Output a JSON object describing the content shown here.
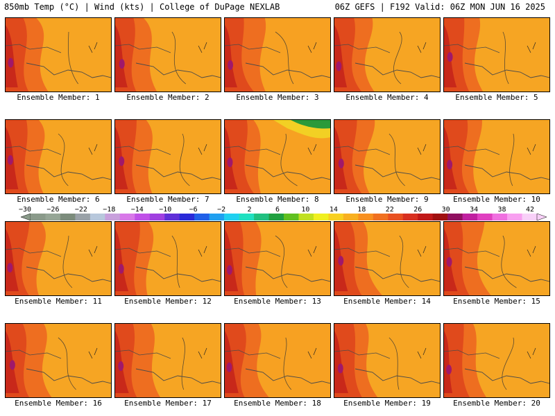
{
  "header": {
    "left": "850mb Temp (°C) | Wind (kts) | College of DuPage NEXLAB",
    "right": "06Z GEFS | F192 Valid: 06Z MON JUN 16 2025"
  },
  "member_label_prefix": "Ensemble Member:",
  "panels": [
    {
      "member": 1,
      "label": "Ensemble Member: 1"
    },
    {
      "member": 2,
      "label": "Ensemble Member: 2"
    },
    {
      "member": 3,
      "label": "Ensemble Member: 3"
    },
    {
      "member": 4,
      "label": "Ensemble Member: 4"
    },
    {
      "member": 5,
      "label": "Ensemble Member: 5"
    },
    {
      "member": 6,
      "label": "Ensemble Member: 6"
    },
    {
      "member": 7,
      "label": "Ensemble Member: 7"
    },
    {
      "member": 8,
      "label": "Ensemble Member: 8"
    },
    {
      "member": 9,
      "label": "Ensemble Member: 9"
    },
    {
      "member": 10,
      "label": "Ensemble Member: 10"
    },
    {
      "member": 11,
      "label": "Ensemble Member: 11"
    },
    {
      "member": 12,
      "label": "Ensemble Member: 12"
    },
    {
      "member": 13,
      "label": "Ensemble Member: 13"
    },
    {
      "member": 14,
      "label": "Ensemble Member: 14"
    },
    {
      "member": 15,
      "label": "Ensemble Member: 15"
    },
    {
      "member": 16,
      "label": "Ensemble Member: 16"
    },
    {
      "member": 17,
      "label": "Ensemble Member: 17"
    },
    {
      "member": 18,
      "label": "Ensemble Member: 18"
    },
    {
      "member": 19,
      "label": "Ensemble Member: 19"
    },
    {
      "member": 20,
      "label": "Ensemble Member: 20"
    }
  ],
  "colorbar": {
    "tick_labels": [
      "−30",
      "−26",
      "−22",
      "−18",
      "−14",
      "−10",
      "−6",
      "−2",
      "2",
      "6",
      "10",
      "14",
      "18",
      "22",
      "26",
      "30",
      "34",
      "38",
      "42"
    ],
    "colors": [
      "#8a9a8a",
      "#96a696",
      "#7c8c7c",
      "#9aa2a8",
      "#b8c8dc",
      "#c8a0dc",
      "#d878e8",
      "#c050e8",
      "#a040e0",
      "#6030d8",
      "#2a2ad8",
      "#2060e8",
      "#20a0f0",
      "#20d0f0",
      "#20e0c0",
      "#20c080",
      "#20a040",
      "#60c020",
      "#c0e020",
      "#f0f020",
      "#f8d020",
      "#f8b020",
      "#f89020",
      "#f07020",
      "#e85020",
      "#d83020",
      "#c01818",
      "#a01010",
      "#901060",
      "#c020a0",
      "#e040c0",
      "#f070e0",
      "#f8a0f0",
      "#f8d0f8"
    ]
  }
}
